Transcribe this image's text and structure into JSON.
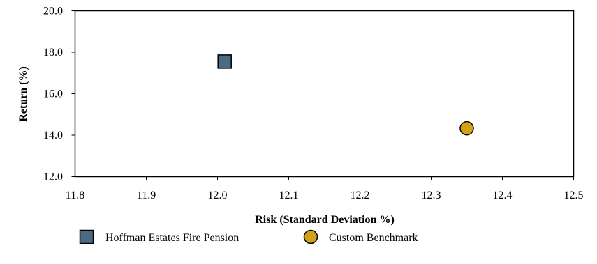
{
  "chart_data": {
    "type": "scatter",
    "title": "",
    "xlabel": "Risk (Standard Deviation %)",
    "ylabel": "Return (%)",
    "xlim": [
      11.8,
      12.5
    ],
    "ylim": [
      12.0,
      20.0
    ],
    "x_ticks": [
      11.8,
      11.9,
      12.0,
      12.1,
      12.2,
      12.3,
      12.4,
      12.5
    ],
    "x_tick_labels": [
      "11.8",
      "11.9",
      "12.0",
      "12.1",
      "12.2",
      "12.3",
      "12.4",
      "12.5"
    ],
    "y_ticks": [
      12.0,
      14.0,
      16.0,
      18.0,
      20.0
    ],
    "y_tick_labels": [
      "12.0",
      "14.0",
      "16.0",
      "18.0",
      "20.0"
    ],
    "grid": false,
    "legend_position": "bottom",
    "series": [
      {
        "name": "Hoffman Estates Fire Pension",
        "marker": "square",
        "color": "#4a6b82",
        "x": [
          12.01
        ],
        "y": [
          17.55
        ]
      },
      {
        "name": "Custom Benchmark",
        "marker": "circle",
        "color": "#d4a017",
        "x": [
          12.35
        ],
        "y": [
          14.33
        ]
      }
    ]
  }
}
